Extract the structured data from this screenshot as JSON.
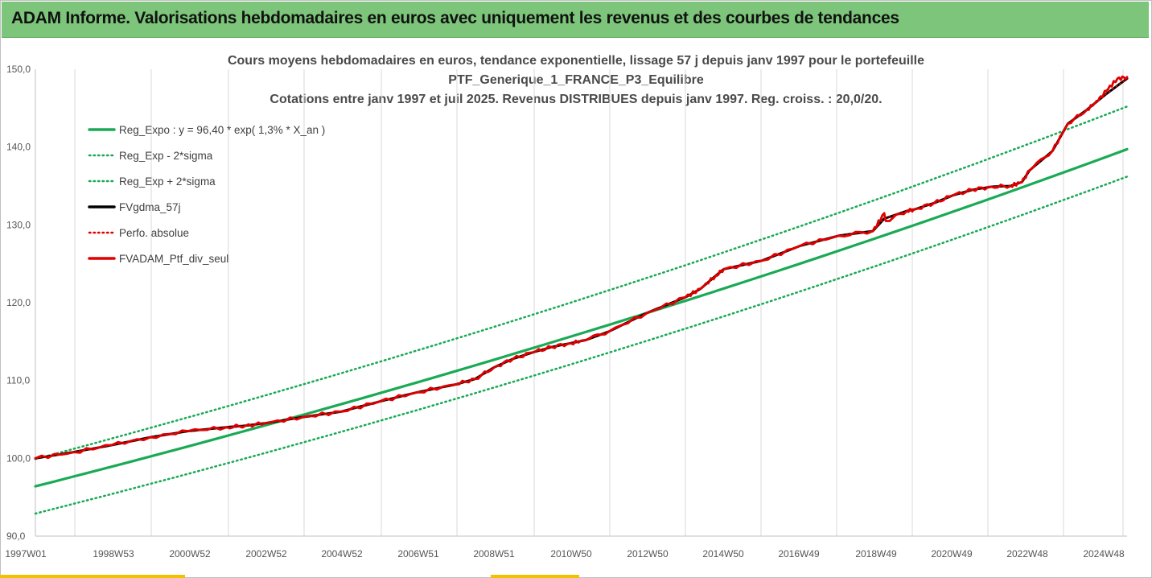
{
  "banner": {
    "title": "ADAM Informe. Valorisations hebdomadaires en euros avec uniquement les revenus et des courbes de tendances"
  },
  "chart_data": {
    "type": "line",
    "title": "Cours moyens hebdomadaires  en euros, tendance exponentielle, lissage 57 j depuis janv 1997 pour le portefeuille",
    "subtitle": "PTF_Generique_1_FRANCE_P3_Equilibre",
    "subtitle2": "Cotations  entre janv 1997 et juil 2025. Revenus DISTRIBUES depuis janv 1997. Reg. croiss. : 20,0/20.",
    "x_tick_labels": [
      "1997W01",
      "1998W53",
      "2000W52",
      "2002W52",
      "2004W52",
      "2006W51",
      "2008W51",
      "2010W50",
      "2012W50",
      "2014W50",
      "2016W49",
      "2018W49",
      "2020W49",
      "2022W48",
      "2024W48"
    ],
    "y_tick_labels": [
      "90,0",
      "100,0",
      "110,0",
      "120,0",
      "130,0",
      "140,0",
      "150,0"
    ],
    "ylim": [
      90,
      150
    ],
    "xlim": [
      1997.0,
      2025.55
    ],
    "grid": "vertical",
    "legend_position": "top-left",
    "series": [
      {
        "name": "Reg_Expo : y = 96,40 * exp( 1,3% *  X_an )",
        "color": "#1aaa55",
        "style": "solid",
        "x": [
          1997.0,
          2025.55
        ],
        "trend": {
          "a": 96.4,
          "r": 0.013
        }
      },
      {
        "name": "Reg_Exp - 2*sigma",
        "color": "#1aaa55",
        "style": "dotted",
        "x": [
          1997.0,
          2025.55
        ],
        "trend": {
          "a": 92.9,
          "r": 0.0134
        }
      },
      {
        "name": "Reg_Exp + 2*sigma",
        "color": "#1aaa55",
        "style": "dotted",
        "x": [
          1997.0,
          2025.55
        ],
        "trend": {
          "a": 99.9,
          "r": 0.0131
        }
      },
      {
        "name": "FVgdma_57j",
        "color": "#000000",
        "style": "solid",
        "x": [
          1997.0,
          1998.0,
          1999.0,
          2000.0,
          2001.0,
          2002.0,
          2002.5,
          2003.0,
          2004.0,
          2005.0,
          2006.0,
          2007.0,
          2008.0,
          2008.5,
          2009.0,
          2009.5,
          2010.0,
          2010.5,
          2011.0,
          2011.4,
          2012.0,
          2013.0,
          2014.0,
          2014.4,
          2014.8,
          2015.0,
          2016.0,
          2017.0,
          2018.0,
          2018.9,
          2019.2,
          2019.8,
          2020.0,
          2020.5,
          2021.0,
          2021.5,
          2022.0,
          2022.5,
          2022.8,
          2023.0,
          2023.6,
          2024.0,
          2024.5,
          2025.0,
          2025.55
        ],
        "values": [
          100.0,
          100.8,
          101.7,
          102.7,
          103.5,
          104.0,
          104.2,
          104.5,
          105.3,
          106.0,
          107.3,
          108.5,
          109.5,
          110.2,
          111.7,
          112.8,
          113.6,
          114.3,
          114.8,
          115.2,
          116.3,
          118.7,
          120.7,
          121.8,
          123.5,
          124.3,
          125.4,
          127.3,
          128.6,
          129.2,
          130.8,
          131.8,
          132.0,
          132.8,
          133.8,
          134.5,
          134.9,
          135.0,
          135.5,
          137.0,
          139.5,
          143.0,
          144.8,
          146.8,
          148.8
        ]
      },
      {
        "name": "Perfo. absolue",
        "color": "#e00000",
        "style": "dotted",
        "x": [
          1997.0,
          1998.0,
          1999.0,
          2000.0,
          2001.0,
          2002.0,
          2002.5,
          2003.0,
          2004.0,
          2005.0,
          2006.0,
          2007.0,
          2008.0,
          2008.5,
          2009.0,
          2009.5,
          2010.0,
          2010.5,
          2011.0,
          2011.4,
          2012.0,
          2013.0,
          2014.0,
          2014.4,
          2014.8,
          2015.0,
          2016.0,
          2017.0,
          2018.0,
          2018.9,
          2019.2,
          2019.8,
          2020.0,
          2020.5,
          2021.0,
          2021.5,
          2022.0,
          2022.5,
          2022.8,
          2023.0,
          2023.6,
          2024.0,
          2024.5,
          2025.0,
          2025.55
        ],
        "values": [
          100.0,
          100.8,
          101.7,
          102.7,
          103.5,
          104.0,
          104.2,
          104.5,
          105.3,
          106.0,
          107.3,
          108.5,
          109.5,
          110.2,
          111.7,
          112.8,
          113.6,
          114.3,
          114.8,
          115.2,
          116.3,
          118.7,
          120.7,
          121.8,
          123.5,
          124.3,
          125.4,
          127.3,
          128.6,
          129.2,
          130.8,
          131.8,
          132.0,
          132.8,
          133.8,
          134.5,
          134.9,
          135.0,
          135.5,
          137.0,
          139.5,
          143.0,
          144.8,
          146.8,
          148.8
        ]
      },
      {
        "name": "FVADAM_Ptf_div_seul",
        "color": "#e00000",
        "style": "solid",
        "x": [
          1997.0,
          1998.0,
          1999.0,
          2000.0,
          2001.0,
          2002.0,
          2002.5,
          2003.0,
          2004.0,
          2005.0,
          2006.0,
          2007.0,
          2008.0,
          2008.5,
          2009.0,
          2009.5,
          2010.0,
          2010.5,
          2011.0,
          2011.4,
          2012.0,
          2013.0,
          2014.0,
          2014.4,
          2014.8,
          2015.0,
          2016.0,
          2017.0,
          2018.0,
          2018.9,
          2019.2,
          2019.25,
          2019.8,
          2020.0,
          2020.5,
          2021.0,
          2021.5,
          2022.0,
          2022.5,
          2022.8,
          2023.0,
          2023.6,
          2024.0,
          2024.5,
          2024.8,
          2025.0,
          2025.3,
          2025.55
        ],
        "values": [
          100.0,
          100.8,
          101.7,
          102.7,
          103.5,
          104.0,
          104.2,
          104.5,
          105.3,
          106.0,
          107.3,
          108.5,
          109.5,
          110.2,
          111.7,
          112.8,
          113.6,
          114.3,
          114.8,
          115.2,
          116.3,
          118.7,
          120.7,
          121.8,
          123.5,
          124.3,
          125.4,
          127.3,
          128.6,
          129.2,
          131.5,
          130.5,
          131.8,
          132.0,
          132.8,
          133.8,
          134.5,
          134.9,
          135.0,
          135.5,
          137.0,
          139.5,
          143.0,
          144.8,
          146.0,
          147.2,
          148.8,
          149.0
        ]
      }
    ]
  }
}
